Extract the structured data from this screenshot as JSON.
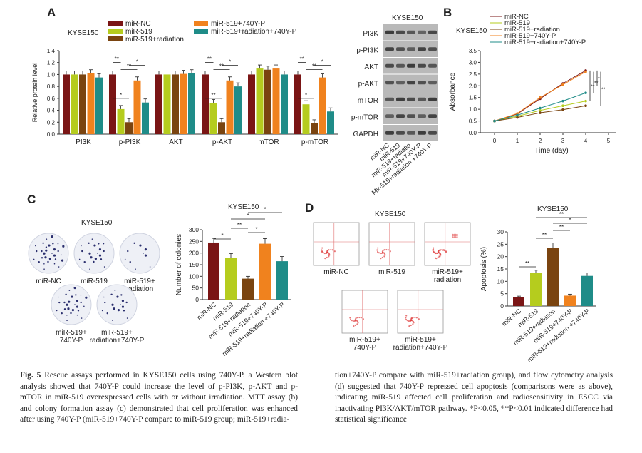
{
  "colors": {
    "miR-NC": "#7a1515",
    "miR-519": "#b5cc1e",
    "miR-519+radiation": "#7a4410",
    "miR-519+740Y-P": "#f0821e",
    "miR-519+radiation+740Y-P": "#1f8c88"
  },
  "panels": {
    "A": "A",
    "B": "B",
    "C": "C",
    "D": "D"
  },
  "chart_data": [
    {
      "id": "A-bar",
      "type": "bar",
      "title": "KYSE150",
      "ylabel": "Relative protein level",
      "ylim": [
        0,
        1.4
      ],
      "yticks": [
        "0.0",
        "0.2",
        "0.4",
        "0.6",
        "0.8",
        "1.0",
        "1.2",
        "1.4"
      ],
      "categories": [
        "PI3K",
        "p-PI3K",
        "AKT",
        "p-AKT",
        "mTOR",
        "p-mTOR"
      ],
      "legend": [
        "miR-NC",
        "miR-519",
        "miR-519+radiation",
        "miR-519+740Y-P",
        "miR-519+radiation+740Y-P"
      ],
      "series": [
        {
          "name": "miR-NC",
          "values": [
            1.0,
            1.0,
            1.0,
            1.0,
            1.0,
            1.0
          ]
        },
        {
          "name": "miR-519",
          "values": [
            1.0,
            0.42,
            1.0,
            0.52,
            1.1,
            0.5
          ]
        },
        {
          "name": "miR-519+radiation",
          "values": [
            1.0,
            0.2,
            1.0,
            0.2,
            1.08,
            0.18
          ]
        },
        {
          "name": "miR-519+740Y-P",
          "values": [
            1.02,
            0.9,
            1.01,
            0.9,
            1.1,
            0.95
          ]
        },
        {
          "name": "miR-519+radiation+740Y-P",
          "values": [
            0.95,
            0.53,
            1.02,
            0.8,
            1.0,
            0.38
          ]
        }
      ],
      "annotations": [
        {
          "group": 1,
          "labels": [
            "**",
            "**",
            "*",
            "*"
          ]
        },
        {
          "group": 3,
          "labels": [
            "**",
            "**",
            "**",
            "*"
          ]
        },
        {
          "group": 5,
          "labels": [
            "**",
            "**",
            "*",
            "*"
          ]
        }
      ]
    },
    {
      "id": "A-blot",
      "type": "table",
      "title": "KYSE150",
      "rows": [
        "PI3K",
        "p-PI3K",
        "AKT",
        "p-AKT",
        "mTOR",
        "p-mTOR",
        "GAPDH"
      ],
      "lanes": [
        "miR-NC",
        "miR-519",
        "miR-519+radiatio",
        "miR-519+740Y-P",
        "Mir-519+radiation +740Y-P"
      ]
    },
    {
      "id": "B-line",
      "type": "line",
      "title": "KYSE150",
      "xlabel": "Time (day)",
      "ylabel": "Absorbance",
      "xlim": [
        0,
        5
      ],
      "ylim": [
        0,
        3.5
      ],
      "xticks": [
        "0",
        "1",
        "2",
        "3",
        "4",
        "5"
      ],
      "yticks": [
        "0.0",
        "0.5",
        "1.0",
        "1.5",
        "2.0",
        "2.5",
        "3.0",
        "3.5"
      ],
      "x": [
        0,
        1,
        2,
        3,
        4
      ],
      "series": [
        {
          "name": "miR-NC",
          "values": [
            0.5,
            0.8,
            1.45,
            2.1,
            2.65
          ]
        },
        {
          "name": "miR-519",
          "values": [
            0.5,
            0.7,
            0.95,
            1.15,
            1.35
          ]
        },
        {
          "name": "miR-519+radiation",
          "values": [
            0.5,
            0.65,
            0.85,
            0.98,
            1.15
          ]
        },
        {
          "name": "miR-519+740Y-P",
          "values": [
            0.5,
            0.82,
            1.5,
            2.05,
            2.6
          ]
        },
        {
          "name": "miR-519+radiation+740Y-P",
          "values": [
            0.5,
            0.75,
            1.05,
            1.35,
            1.7
          ]
        }
      ],
      "annotations": [
        "**",
        "**",
        "*",
        "**"
      ]
    },
    {
      "id": "C-bar",
      "type": "bar",
      "title": "KYSE150",
      "ylabel": "Number of colonies",
      "ylim": [
        0,
        300
      ],
      "yticks": [
        "0",
        "50",
        "100",
        "150",
        "200",
        "250",
        "300"
      ],
      "categories": [
        "miR-NC",
        "miR-519",
        "miR-519+radiation",
        "miR-519+740Y-P",
        "miR-519+radiation +740Y-P"
      ],
      "values": [
        245,
        178,
        90,
        240,
        165
      ],
      "errors": [
        18,
        20,
        10,
        22,
        20
      ],
      "annotations": [
        "*",
        "**",
        "*",
        "*",
        "*"
      ]
    },
    {
      "id": "D-bar",
      "type": "bar",
      "title": "KYSE150",
      "ylabel": "Apoptosis (%)",
      "ylim": [
        0,
        30
      ],
      "yticks": [
        "0",
        "5",
        "10",
        "15",
        "20",
        "25",
        "30"
      ],
      "categories": [
        "miR-NC",
        "miR-519",
        "miR-519+radiation",
        "miR-519+740Y-P",
        "miR-519+radiation +740Y-P"
      ],
      "values": [
        3.5,
        13.5,
        23.5,
        4.2,
        12.2
      ],
      "errors": [
        0.5,
        1.0,
        2.0,
        0.6,
        1.2
      ],
      "annotations": [
        "**",
        "**",
        "**",
        "*",
        "**"
      ]
    }
  ],
  "colony_labels": [
    "miR-NC",
    "miR-519",
    "miR-519+ radiation",
    "miR-519+ 740Y-P",
    "miR-519+ radiation+740Y-P"
  ],
  "colony_title": "KYSE150",
  "flow_labels": [
    "miR-NC",
    "miR-519",
    "miR-519+ radiation",
    "miR-519+ 740Y-P",
    "miR-519+ radiation+740Y-P"
  ],
  "flow_title": "KYSE150",
  "caption": {
    "figure_label": "Fig. 5",
    "text_left": "Rescue assays performed in KYSE150 cells using 740Y-P. a Western blot analysis showed that 740Y-P could increase the level of p-PI3K, p-AKT and p-mTOR in miR-519 overexpressed cells with or without irradiation. MTT assay (b) and colony formation assay (c) demonstrated that cell proliferation was enhanced after using 740Y-P (miR-519+740Y-P compare to miR-519 group; miR-519+radia-",
    "text_right": "tion+740Y-P compare with miR-519+radiation group), and flow cytometry analysis (d) suggested that 740Y-P repressed cell apoptosis (comparisons were as above), indicating miR-519 affected cell proliferation and radiosensitivity in ESCC via inactivating PI3K/AKT/mTOR pathway. *P<0.05, **P<0.01 indicated difference had statistical significance"
  }
}
